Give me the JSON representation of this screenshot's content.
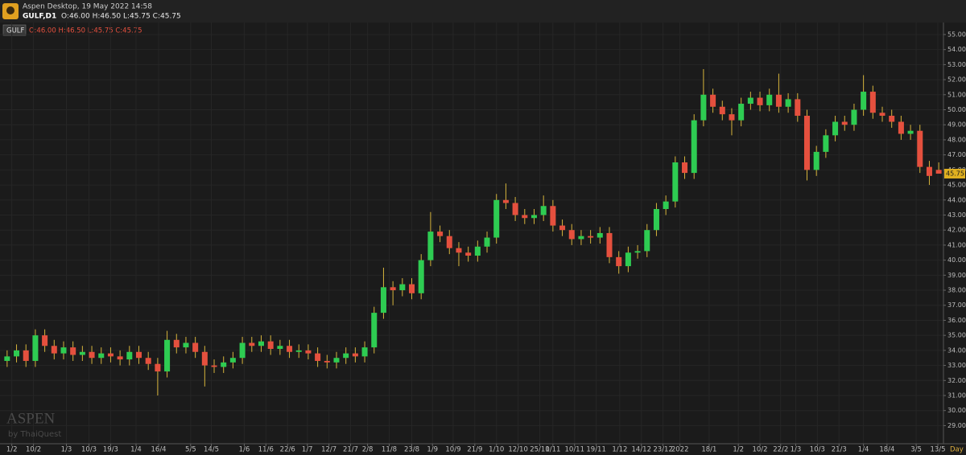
{
  "header": {
    "app_title": "Aspen Desktop, 19 May 2022 14:58",
    "symbol": "GULF,D1",
    "ohlc": "O:46.00 H:46.50 L:45.75 C:45.75"
  },
  "watermark": {
    "brand": "ASPEN",
    "by": "by ThaiQuest"
  },
  "chart_data": {
    "type": "candlestick",
    "legend_symbol": "GULF",
    "legend_ohlc": "O:46.00 H:46.50 L:45.75 C:45.75",
    "period": "Day",
    "up_color": "#2ecc52",
    "down_color": "#e5503e",
    "wick_color": "#d6b43c",
    "grid": true,
    "last_price": {
      "value": 45.75,
      "label": "45.75"
    },
    "ylim": [
      27.9,
      55.8
    ],
    "yticks": [
      {
        "value": 29,
        "label": "29.00"
      },
      {
        "value": 30,
        "label": "30.00"
      },
      {
        "value": 31,
        "label": "31.00"
      },
      {
        "value": 32,
        "label": "32.00"
      },
      {
        "value": 33,
        "label": "33.00"
      },
      {
        "value": 34,
        "label": "34.00"
      },
      {
        "value": 35,
        "label": "35.00"
      },
      {
        "value": 36,
        "label": "36.00"
      },
      {
        "value": 37,
        "label": "37.00"
      },
      {
        "value": 38,
        "label": "38.00"
      },
      {
        "value": 39,
        "label": "39.00"
      },
      {
        "value": 40,
        "label": "40.00"
      },
      {
        "value": 41,
        "label": "41.00"
      },
      {
        "value": 42,
        "label": "42.00"
      },
      {
        "value": 43,
        "label": "43.00"
      },
      {
        "value": 44,
        "label": "44.00"
      },
      {
        "value": 45,
        "label": "45.00"
      },
      {
        "value": 46,
        "label": "46.00"
      },
      {
        "value": 47,
        "label": "47.00"
      },
      {
        "value": 48,
        "label": "48.00"
      },
      {
        "value": 49,
        "label": "49.00"
      },
      {
        "value": 50,
        "label": "50.00"
      },
      {
        "value": 51,
        "label": "51.00"
      },
      {
        "value": 52,
        "label": "52.00"
      },
      {
        "value": 53,
        "label": "53.00"
      },
      {
        "value": 54,
        "label": "54.00"
      },
      {
        "value": 55,
        "label": "55.00"
      }
    ],
    "xticks": [
      {
        "value": 0.5,
        "label": "1/2"
      },
      {
        "value": 2.8,
        "label": "10/2"
      },
      {
        "value": 6.3,
        "label": "1/3"
      },
      {
        "value": 8.7,
        "label": "10/3"
      },
      {
        "value": 11.0,
        "label": "19/3"
      },
      {
        "value": 13.7,
        "label": "1/4"
      },
      {
        "value": 16.1,
        "label": "16/4"
      },
      {
        "value": 19.5,
        "label": "5/5"
      },
      {
        "value": 21.7,
        "label": "14/5"
      },
      {
        "value": 25.2,
        "label": "1/6"
      },
      {
        "value": 27.5,
        "label": "11/6"
      },
      {
        "value": 29.8,
        "label": "22/6"
      },
      {
        "value": 31.9,
        "label": "1/7"
      },
      {
        "value": 34.2,
        "label": "12/7"
      },
      {
        "value": 36.5,
        "label": "21/7"
      },
      {
        "value": 38.3,
        "label": "2/8"
      },
      {
        "value": 40.6,
        "label": "11/8"
      },
      {
        "value": 43.0,
        "label": "23/8"
      },
      {
        "value": 45.2,
        "label": "1/9"
      },
      {
        "value": 47.4,
        "label": "10/9"
      },
      {
        "value": 49.7,
        "label": "21/9"
      },
      {
        "value": 52.0,
        "label": "1/10"
      },
      {
        "value": 54.3,
        "label": "12/10"
      },
      {
        "value": 56.6,
        "label": "25/10"
      },
      {
        "value": 58.0,
        "label": "1/11"
      },
      {
        "value": 60.3,
        "label": "10/11"
      },
      {
        "value": 62.6,
        "label": "19/11"
      },
      {
        "value": 65.1,
        "label": "1/12"
      },
      {
        "value": 67.4,
        "label": "14/12"
      },
      {
        "value": 69.7,
        "label": "23/12"
      },
      {
        "value": 71.5,
        "label": "2022"
      },
      {
        "value": 74.6,
        "label": "18/1"
      },
      {
        "value": 77.7,
        "label": "1/2"
      },
      {
        "value": 80.0,
        "label": "10/2"
      },
      {
        "value": 82.2,
        "label": "22/2"
      },
      {
        "value": 83.8,
        "label": "1/3"
      },
      {
        "value": 86.1,
        "label": "10/3"
      },
      {
        "value": 88.4,
        "label": "21/3"
      },
      {
        "value": 91.0,
        "label": "1/4"
      },
      {
        "value": 93.5,
        "label": "18/4"
      },
      {
        "value": 96.6,
        "label": "3/5"
      },
      {
        "value": 98.9,
        "label": "13/5"
      }
    ],
    "open": [
      33.3,
      33.6,
      34.0,
      33.3,
      35.0,
      34.3,
      33.8,
      34.2,
      33.7,
      33.9,
      33.5,
      33.8,
      33.6,
      33.4,
      33.9,
      33.5,
      33.1,
      32.6,
      34.7,
      34.2,
      34.5,
      33.9,
      33.0,
      32.9,
      33.2,
      33.5,
      34.5,
      34.3,
      34.6,
      34.1,
      34.3,
      33.9,
      34.0,
      33.8,
      33.3,
      33.2,
      33.5,
      33.8,
      33.6,
      34.2,
      36.5,
      38.2,
      38.0,
      38.4,
      37.8,
      40.0,
      41.9,
      41.6,
      40.8,
      40.5,
      40.3,
      40.9,
      41.5,
      44.0,
      43.8,
      43.0,
      42.8,
      43.0,
      43.6,
      42.3,
      42.0,
      41.4,
      41.6,
      41.5,
      41.8,
      40.2,
      39.6,
      40.5,
      40.6,
      42.0,
      43.4,
      43.9,
      46.5,
      45.8,
      49.3,
      51.0,
      50.2,
      49.7,
      49.3,
      50.4,
      50.8,
      50.3,
      51.0,
      50.2,
      50.7,
      49.6,
      46.0,
      47.2,
      48.3,
      49.2,
      49.0,
      50.0,
      51.2,
      49.8,
      49.6,
      49.2,
      48.4,
      48.6,
      46.2,
      46.0
    ],
    "high": [
      34.0,
      34.4,
      34.4,
      35.4,
      35.4,
      34.7,
      34.6,
      34.6,
      34.3,
      34.3,
      34.2,
      34.2,
      34.0,
      34.3,
      34.3,
      33.9,
      33.5,
      35.3,
      35.1,
      34.9,
      34.9,
      34.3,
      33.4,
      33.6,
      33.9,
      34.9,
      34.9,
      35.0,
      35.0,
      34.7,
      34.7,
      34.4,
      34.4,
      34.2,
      33.7,
      33.9,
      34.2,
      34.2,
      34.6,
      36.9,
      39.5,
      38.6,
      38.8,
      38.8,
      40.4,
      43.2,
      42.3,
      42.0,
      41.2,
      40.9,
      41.3,
      41.9,
      44.4,
      45.1,
      44.2,
      43.4,
      43.4,
      44.3,
      44.0,
      42.7,
      42.4,
      42.0,
      42.0,
      42.2,
      42.2,
      40.6,
      40.9,
      41.0,
      42.4,
      43.8,
      44.3,
      46.9,
      46.9,
      49.7,
      52.7,
      51.4,
      50.6,
      50.1,
      50.8,
      51.2,
      51.2,
      51.4,
      52.4,
      51.1,
      51.1,
      50.0,
      47.6,
      48.7,
      49.6,
      49.6,
      50.4,
      52.3,
      51.6,
      50.2,
      50.0,
      49.6,
      49.0,
      49.0,
      46.6,
      46.5
    ],
    "low": [
      32.9,
      33.2,
      32.9,
      32.9,
      33.9,
      33.4,
      33.4,
      33.3,
      33.3,
      33.1,
      33.1,
      33.2,
      33.0,
      33.0,
      33.1,
      32.7,
      31.0,
      32.2,
      33.8,
      33.8,
      33.5,
      31.6,
      32.5,
      32.5,
      32.8,
      33.1,
      33.9,
      33.9,
      33.7,
      33.7,
      33.5,
      33.5,
      33.4,
      32.9,
      32.8,
      32.8,
      33.1,
      33.2,
      33.2,
      33.8,
      36.1,
      37.0,
      37.6,
      37.4,
      37.4,
      39.6,
      41.2,
      40.4,
      39.6,
      39.9,
      39.9,
      40.5,
      41.1,
      43.4,
      42.6,
      42.4,
      42.4,
      42.6,
      41.9,
      41.6,
      41.0,
      41.0,
      41.1,
      41.1,
      39.8,
      39.1,
      39.2,
      40.1,
      40.2,
      41.6,
      43.0,
      43.5,
      45.4,
      45.4,
      48.9,
      49.8,
      49.3,
      48.3,
      48.9,
      50.0,
      49.9,
      49.9,
      49.8,
      49.8,
      49.2,
      45.3,
      45.6,
      46.8,
      47.9,
      48.6,
      48.6,
      49.6,
      49.4,
      49.2,
      48.8,
      48.0,
      48.0,
      45.8,
      45.0,
      45.75
    ],
    "close": [
      33.6,
      34.0,
      33.3,
      35.0,
      34.3,
      33.8,
      34.2,
      33.7,
      33.9,
      33.5,
      33.8,
      33.6,
      33.4,
      33.9,
      33.5,
      33.1,
      32.6,
      34.7,
      34.2,
      34.5,
      33.9,
      33.0,
      32.9,
      33.2,
      33.5,
      34.5,
      34.3,
      34.6,
      34.1,
      34.3,
      33.9,
      34.0,
      33.8,
      33.3,
      33.2,
      33.5,
      33.8,
      33.6,
      34.2,
      36.5,
      38.2,
      38.0,
      38.4,
      37.8,
      40.0,
      41.9,
      41.6,
      40.8,
      40.5,
      40.3,
      40.9,
      41.5,
      44.0,
      43.8,
      43.0,
      42.8,
      43.0,
      43.6,
      42.3,
      42.0,
      41.4,
      41.6,
      41.5,
      41.8,
      40.2,
      39.6,
      40.5,
      40.6,
      42.0,
      43.4,
      43.9,
      46.5,
      45.8,
      49.3,
      51.0,
      50.2,
      49.7,
      49.3,
      50.4,
      50.8,
      50.3,
      51.0,
      50.2,
      50.7,
      49.6,
      46.0,
      47.2,
      48.3,
      49.2,
      49.0,
      50.0,
      51.2,
      49.8,
      49.6,
      49.2,
      48.4,
      48.6,
      46.2,
      45.6,
      45.75
    ]
  }
}
